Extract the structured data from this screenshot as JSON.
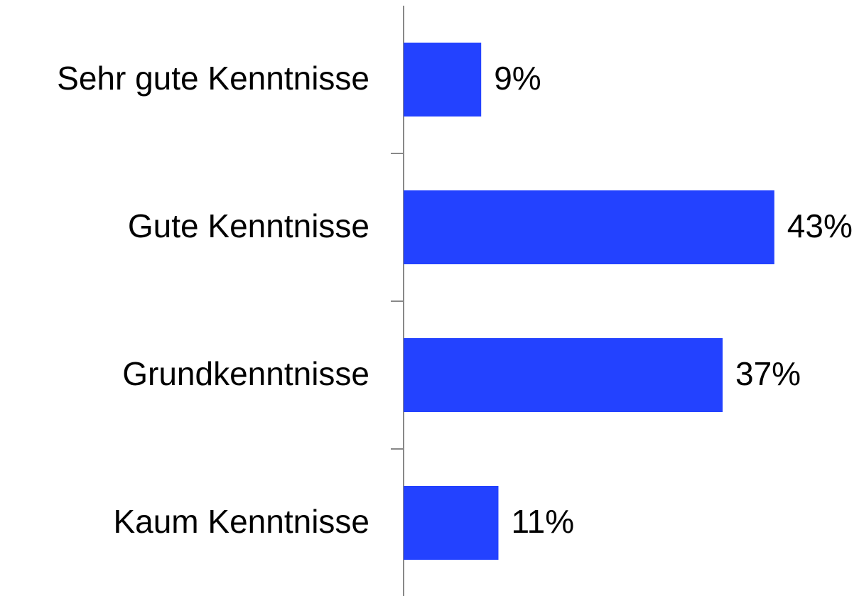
{
  "chart_data": {
    "type": "hbar",
    "categories": [
      "Sehr gute Kenntnisse",
      "Gute Kenntnisse",
      "Grundkenntnisse",
      "Kaum Kenntnisse"
    ],
    "values": [
      9,
      43,
      37,
      11
    ],
    "value_labels": [
      "9%",
      "43%",
      "37%",
      "11%"
    ],
    "color": "#2342ff",
    "xlim": [
      0,
      53.4
    ]
  }
}
